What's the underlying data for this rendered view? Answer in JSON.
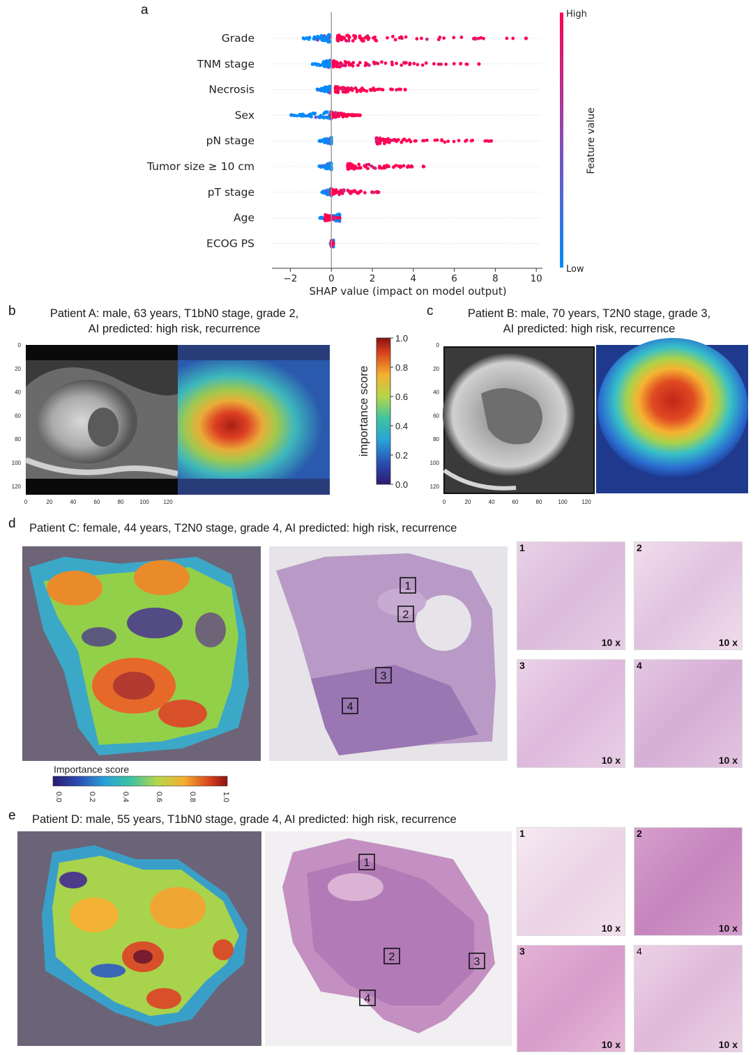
{
  "panels": {
    "a": "a",
    "b": "b",
    "c": "c",
    "d": "d",
    "e": "e"
  },
  "shap": {
    "features": [
      "Grade",
      "TNM stage",
      "Necrosis",
      "Sex",
      "pN stage",
      "Tumor size ≥ 10 cm",
      "pT stage",
      "Age",
      "ECOG PS"
    ],
    "xlabel": "SHAP value (impact on model output)",
    "xticks": [
      -2,
      0,
      2,
      4,
      6,
      8,
      10
    ],
    "xlim": [
      -2.9,
      10.3
    ],
    "colorbar": {
      "label": "Feature value",
      "high": "High",
      "low": "Low"
    },
    "colors": {
      "high": "#ff0052",
      "low": "#008bfb"
    }
  },
  "chart_data": {
    "type": "scatter",
    "xlabel": "SHAP value (impact on model output)",
    "categories": [
      "Grade",
      "TNM stage",
      "Necrosis",
      "Sex",
      "pN stage",
      "Tumor size ≥ 10 cm",
      "pT stage",
      "Age",
      "ECOG PS"
    ],
    "xlim": [
      -2.9,
      10.3
    ],
    "series": [
      {
        "feature": "Grade",
        "low_range": [
          -1.5,
          -0.1
        ],
        "high_range": [
          0.3,
          9.5
        ]
      },
      {
        "feature": "TNM stage",
        "low_range": [
          -1.0,
          -0.05
        ],
        "high_range": [
          0.1,
          7.2
        ]
      },
      {
        "feature": "Necrosis",
        "low_range": [
          -0.7,
          -0.05
        ],
        "high_range": [
          0.2,
          3.6
        ]
      },
      {
        "feature": "Sex",
        "low_range": [
          -2.0,
          0.0
        ],
        "high_range": [
          0.0,
          1.4
        ]
      },
      {
        "feature": "pN stage",
        "low_range": [
          -0.6,
          0.0
        ],
        "high_range": [
          2.2,
          7.8
        ]
      },
      {
        "feature": "Tumor size ≥ 10 cm",
        "low_range": [
          -0.6,
          0.0
        ],
        "high_range": [
          0.8,
          4.5
        ]
      },
      {
        "feature": "pT stage",
        "low_range": [
          -0.5,
          0.0
        ],
        "high_range": [
          0.0,
          2.3
        ]
      },
      {
        "feature": "Age",
        "low_range": [
          -0.6,
          0.4
        ],
        "high_range": [
          -0.3,
          0.4
        ]
      },
      {
        "feature": "ECOG PS",
        "low_range": [
          -0.05,
          0.1
        ],
        "high_range": [
          0.0,
          0.1
        ]
      }
    ]
  },
  "b": {
    "line1": "Patient A: male, 63 years, T1bN0 stage, grade 2,",
    "line2": "AI predicted: high risk, recurrence"
  },
  "c": {
    "line1": "Patient B: male, 70 years, T2N0 stage, grade 3,",
    "line2": "AI predicted: high risk, recurrence"
  },
  "ct_ticks": [
    "0",
    "20",
    "40",
    "60",
    "80",
    "100",
    "120"
  ],
  "importance_bar": {
    "label": "importance score",
    "ticks": [
      "0.0",
      "0.2",
      "0.4",
      "0.6",
      "0.8",
      "1.0"
    ]
  },
  "d": {
    "caption": "Patient C: female, 44 years, T2N0 stage, grade 4, AI predicted: high risk, recurrence",
    "boxes": [
      "1",
      "2",
      "3",
      "4"
    ],
    "tiles": [
      {
        "num": "1",
        "mag": "10 x"
      },
      {
        "num": "2",
        "mag": "10 x"
      },
      {
        "num": "3",
        "mag": "10 x"
      },
      {
        "num": "4",
        "mag": "10 x"
      }
    ],
    "colorbar_label": "Importance score",
    "colorbar_ticks": [
      "0.0",
      "0.2",
      "0.4",
      "0.6",
      "0.8",
      "1.0"
    ]
  },
  "e": {
    "caption": "Patient D: male, 55 years, T1bN0 stage, grade 4, AI predicted: high risk, recurrence",
    "boxes": [
      "1",
      "2",
      "3",
      "4"
    ],
    "tiles": [
      {
        "num": "1",
        "mag": "10 x"
      },
      {
        "num": "2",
        "mag": "10 x"
      },
      {
        "num": "3",
        "mag": "10 x"
      },
      {
        "num": "4",
        "mag": "10 x"
      }
    ]
  }
}
